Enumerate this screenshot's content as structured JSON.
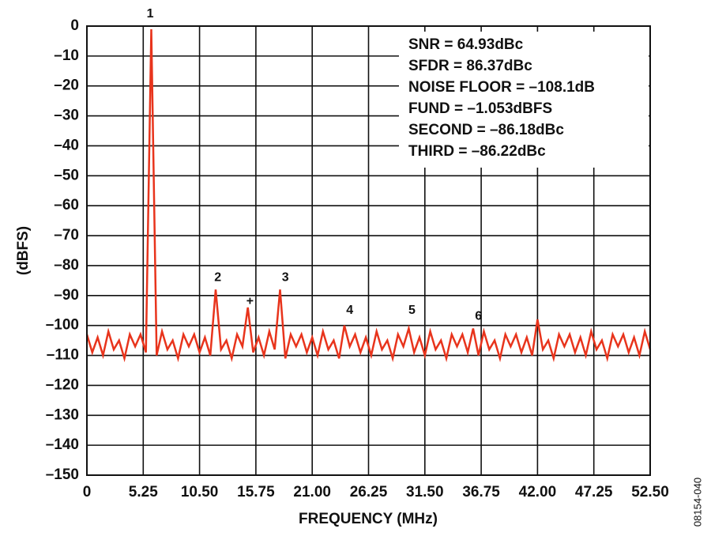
{
  "chart_data": {
    "type": "line",
    "y_label": "(dBFS)",
    "x_label": "FREQUENCY (MHz)",
    "figure_id": "08154-040",
    "stats": [
      "SNR = 64.93dBc",
      "SFDR = 86.37dBc",
      "NOISE FLOOR = –108.1dB",
      "FUND = –1.053dBFS",
      "SECOND = –86.18dBc",
      "THIRD = –86.22dBc"
    ],
    "color": "#e8341c",
    "grid": true,
    "xlim": [
      0,
      52.5
    ],
    "ylim": [
      -150,
      0
    ],
    "xticks": [
      0,
      5.25,
      {
        "value": 10.5,
        "label": "10.50"
      },
      15.75,
      {
        "value": 21,
        "label": "21.00"
      },
      26.25,
      {
        "value": 31.5,
        "label": "31.50"
      },
      36.75,
      {
        "value": 42,
        "label": "42.00"
      },
      47.25,
      {
        "value": 52.5,
        "label": "52.50"
      }
    ],
    "yticks": [
      0,
      {
        "value": -10,
        "label": "–10"
      },
      {
        "value": -20,
        "label": "–20"
      },
      {
        "value": -30,
        "label": "–30"
      },
      {
        "value": -40,
        "label": "–40"
      },
      {
        "value": -50,
        "label": "–50"
      },
      {
        "value": -60,
        "label": "–60"
      },
      {
        "value": -70,
        "label": "–70"
      },
      {
        "value": -80,
        "label": "–80"
      },
      {
        "value": -90,
        "label": "–90"
      },
      {
        "value": -100,
        "label": "–100"
      },
      {
        "value": -110,
        "label": "–110"
      },
      {
        "value": -120,
        "label": "–120"
      },
      {
        "value": -130,
        "label": "–130"
      },
      {
        "value": -140,
        "label": "–140"
      },
      {
        "value": -150,
        "label": "–150"
      }
    ],
    "annotations": [
      {
        "text": "1",
        "x": 5.9,
        "y": 4
      },
      {
        "text": "2",
        "x": 12.2,
        "y": -84
      },
      {
        "text": "+",
        "x": 15.2,
        "y": -92
      },
      {
        "text": "3",
        "x": 18.5,
        "y": -84
      },
      {
        "text": "4",
        "x": 24.5,
        "y": -95
      },
      {
        "text": "5",
        "x": 30.3,
        "y": -95
      },
      {
        "text": "6",
        "x": 36.5,
        "y": -97
      }
    ],
    "x": [
      0,
      0.5,
      1,
      1.5,
      2,
      2.5,
      3,
      3.5,
      4,
      4.5,
      5,
      5.5,
      6,
      6.5,
      7,
      7.5,
      8,
      8.5,
      9,
      9.5,
      10,
      10.5,
      11,
      11.5,
      12,
      12.5,
      13,
      13.5,
      14,
      14.5,
      15,
      15.5,
      16,
      16.5,
      17,
      17.5,
      18,
      18.5,
      19,
      19.5,
      20,
      20.5,
      21,
      21.5,
      22,
      22.5,
      23,
      23.5,
      24,
      24.5,
      25,
      25.5,
      26,
      26.5,
      27,
      27.5,
      28,
      28.5,
      29,
      29.5,
      30,
      30.5,
      31,
      31.5,
      32,
      32.5,
      33,
      33.5,
      34,
      34.5,
      35,
      35.5,
      36,
      36.5,
      37,
      37.5,
      38,
      38.5,
      39,
      39.5,
      40,
      40.5,
      41,
      41.5,
      42,
      42.5,
      43,
      43.5,
      44,
      44.5,
      45,
      45.5,
      46,
      46.5,
      47,
      47.5,
      48,
      48.5,
      49,
      49.5,
      50,
      50.5,
      51,
      51.5,
      52,
      52.5
    ],
    "values": [
      -103,
      -109,
      -104,
      -110,
      -102,
      -108,
      -105,
      -111,
      -103,
      -107,
      -103,
      -109,
      -1.05,
      -110,
      -102,
      -108,
      -105,
      -111,
      -103,
      -107,
      -103,
      -109,
      -104,
      -110,
      -88,
      -108,
      -105,
      -111,
      -103,
      -107,
      -94,
      -109,
      -104,
      -110,
      -102,
      -108,
      -88,
      -111,
      -103,
      -107,
      -103,
      -109,
      -104,
      -110,
      -102,
      -108,
      -105,
      -111,
      -100,
      -107,
      -103,
      -109,
      -104,
      -110,
      -102,
      -108,
      -105,
      -111,
      -103,
      -107,
      -101,
      -109,
      -104,
      -110,
      -102,
      -108,
      -105,
      -111,
      -103,
      -107,
      -103,
      -109,
      -101,
      -110,
      -102,
      -108,
      -105,
      -111,
      -103,
      -107,
      -103,
      -109,
      -104,
      -110,
      -98,
      -108,
      -105,
      -111,
      -103,
      -107,
      -103,
      -109,
      -104,
      -110,
      -102,
      -108,
      -105,
      -111,
      -103,
      -107,
      -103,
      -109,
      -104,
      -110,
      -102,
      -108
    ]
  }
}
